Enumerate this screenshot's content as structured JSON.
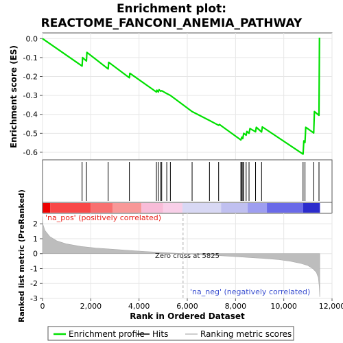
{
  "chart_data": {
    "type": "line",
    "title_line1": "Enrichment plot:",
    "title_line2": "REACTOME_FANCONI_ANEMIA_PATHWAY",
    "es_panel": {
      "ylabel": "Enrichment score (ES)",
      "ylim": [
        -0.64,
        0.03
      ],
      "yticks": [
        "0.0",
        "-0.1",
        "-0.2",
        "-0.3",
        "-0.4",
        "-0.5",
        "-0.6"
      ],
      "ytick_values": [
        0.0,
        -0.1,
        -0.2,
        -0.3,
        -0.4,
        -0.5,
        -0.6
      ],
      "color": "#00e000",
      "points": [
        [
          0,
          0.0
        ],
        [
          1640,
          -0.145
        ],
        [
          1660,
          -0.1
        ],
        [
          1820,
          -0.118
        ],
        [
          1840,
          -0.073
        ],
        [
          2720,
          -0.16
        ],
        [
          2740,
          -0.125
        ],
        [
          3600,
          -0.207
        ],
        [
          3620,
          -0.183
        ],
        [
          4720,
          -0.282
        ],
        [
          4740,
          -0.272
        ],
        [
          4800,
          -0.282
        ],
        [
          4830,
          -0.27
        ],
        [
          4900,
          -0.278
        ],
        [
          4940,
          -0.275
        ],
        [
          5150,
          -0.29
        ],
        [
          5300,
          -0.3
        ],
        [
          6200,
          -0.385
        ],
        [
          6920,
          -0.432
        ],
        [
          7300,
          -0.458
        ],
        [
          7330,
          -0.453
        ],
        [
          8220,
          -0.535
        ],
        [
          8260,
          -0.52
        ],
        [
          8300,
          -0.528
        ],
        [
          8340,
          -0.5
        ],
        [
          8440,
          -0.51
        ],
        [
          8470,
          -0.49
        ],
        [
          8560,
          -0.5
        ],
        [
          8600,
          -0.475
        ],
        [
          8830,
          -0.492
        ],
        [
          8860,
          -0.468
        ],
        [
          9080,
          -0.493
        ],
        [
          9110,
          -0.466
        ],
        [
          10800,
          -0.61
        ],
        [
          10830,
          -0.54
        ],
        [
          10880,
          -0.548
        ],
        [
          10910,
          -0.468
        ],
        [
          11240,
          -0.498
        ],
        [
          11270,
          -0.385
        ],
        [
          11460,
          -0.405
        ],
        [
          11480,
          0.005
        ]
      ]
    },
    "hits": [
      1640,
      1820,
      2720,
      3600,
      4720,
      4800,
      4900,
      4940,
      5150,
      5300,
      6200,
      6920,
      7300,
      8220,
      8260,
      8300,
      8340,
      8440,
      8560,
      8830,
      9080,
      10800,
      10880,
      11240,
      11460
    ],
    "rank_panel": {
      "ylabel": "Ranked list metric (PreRanked)",
      "ylim": [
        -3,
        2.7
      ],
      "yticks": [
        "2",
        "1",
        "0",
        "-1",
        "-2",
        "-3"
      ],
      "ytick_values": [
        2,
        1,
        0,
        -1,
        -2,
        -3
      ],
      "color": "#bdbdbd",
      "curve": [
        [
          0,
          2.5
        ],
        [
          20,
          1.95
        ],
        [
          100,
          1.55
        ],
        [
          300,
          1.15
        ],
        [
          600,
          0.85
        ],
        [
          1000,
          0.65
        ],
        [
          1600,
          0.48
        ],
        [
          2200,
          0.38
        ],
        [
          3000,
          0.28
        ],
        [
          4000,
          0.17
        ],
        [
          5000,
          0.07
        ],
        [
          5825,
          0.0
        ],
        [
          7000,
          -0.1
        ],
        [
          8000,
          -0.2
        ],
        [
          9000,
          -0.3
        ],
        [
          9800,
          -0.4
        ],
        [
          10300,
          -0.52
        ],
        [
          10700,
          -0.65
        ],
        [
          11000,
          -0.8
        ],
        [
          11200,
          -1.0
        ],
        [
          11350,
          -1.25
        ],
        [
          11430,
          -1.6
        ],
        [
          11470,
          -2.2
        ],
        [
          11490,
          -2.9
        ]
      ],
      "zero_cross_label": "Zero cross at 5825",
      "zero_cross_rank": 5825,
      "pos_label": "'na_pos' (positively correlated)",
      "neg_label": "'na_neg' (negatively correlated)"
    },
    "heatbar": [
      {
        "from": 0,
        "to": 320,
        "color": "#ee0000"
      },
      {
        "from": 320,
        "to": 2000,
        "color": "#f84848"
      },
      {
        "from": 2000,
        "to": 2900,
        "color": "#f87070"
      },
      {
        "from": 2900,
        "to": 4100,
        "color": "#f89898"
      },
      {
        "from": 4100,
        "to": 5000,
        "color": "#f8bcd8"
      },
      {
        "from": 5000,
        "to": 5800,
        "color": "#f8cfe8"
      },
      {
        "from": 5800,
        "to": 7400,
        "color": "#d8d8f4"
      },
      {
        "from": 7400,
        "to": 8500,
        "color": "#c0c0f0"
      },
      {
        "from": 8500,
        "to": 9300,
        "color": "#9e9ef0"
      },
      {
        "from": 9300,
        "to": 10800,
        "color": "#6a6ae8"
      },
      {
        "from": 10800,
        "to": 11500,
        "color": "#2c2ccc"
      }
    ],
    "xaxis": {
      "label": "Rank in Ordered Dataset",
      "xlim": [
        0,
        12000
      ],
      "ticks": [
        "0",
        "2,000",
        "4,000",
        "6,000",
        "8,000",
        "10,000",
        "12,000"
      ],
      "tick_values": [
        0,
        2000,
        4000,
        6000,
        8000,
        10000,
        12000
      ]
    },
    "legend": [
      {
        "label": "Enrichment profile",
        "color": "#00e000",
        "style": "line"
      },
      {
        "label": "Hits",
        "color": "#000000",
        "style": "line"
      },
      {
        "label": "Ranking metric scores",
        "color": "#bdbdbd",
        "style": "line"
      }
    ]
  }
}
